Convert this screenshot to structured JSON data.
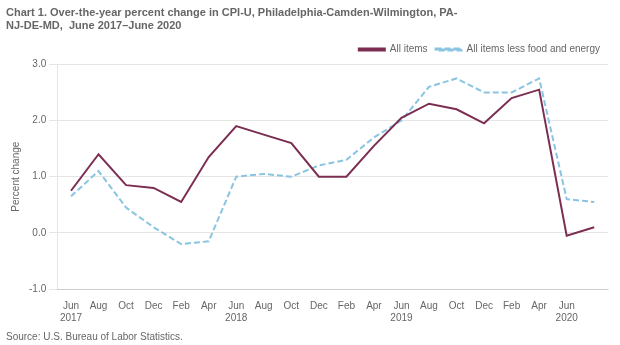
{
  "chart_data": {
    "type": "line",
    "title": [
      "Chart 1. Over-the-year percent change in CPI-U, Philadelphia-Camden-Wilmington, PA-",
      "NJ-DE-MD,  June 2017–June 2020"
    ],
    "y_label": "Percent change",
    "annotations": [
      "Source: U.S. Bureau of Labor Statistics."
    ],
    "categories": [
      "Jun 2017",
      "Aug",
      "Oct",
      "Dec",
      "Feb",
      "Apr",
      "Jun 2018",
      "Aug",
      "Oct",
      "Dec",
      "Feb",
      "Apr",
      "Jun 2019",
      "Aug",
      "Oct",
      "Dec",
      "Feb",
      "Apr",
      "Jun 2020",
      null
    ],
    "series": [
      {
        "name": "All items",
        "color": "#7B2D52",
        "line_style": "solid",
        "marker": "none",
        "values": [
          0.75,
          1.4,
          0.85,
          0.8,
          0.55,
          1.35,
          1.9,
          1.75,
          1.6,
          1.0,
          1.0,
          1.55,
          2.05,
          2.3,
          2.2,
          1.95,
          2.4,
          2.55,
          -0.05,
          0.1
        ]
      },
      {
        "name": "All items less food and energy",
        "color": "#89C4E1",
        "line_style": "dashed",
        "marker": "none",
        "values": [
          0.65,
          1.1,
          0.45,
          0.1,
          -0.2,
          -0.15,
          1.0,
          1.05,
          1.0,
          1.2,
          1.3,
          1.7,
          2.0,
          2.6,
          2.75,
          2.5,
          2.5,
          2.75,
          0.6,
          0.55
        ]
      }
    ],
    "ylim": [
      -1.0,
      3.0
    ],
    "yticks": [
      {
        "value": -1.0,
        "label": "-1.0"
      },
      {
        "value": 0.0,
        "label": "0.0"
      },
      {
        "value": 1.0,
        "label": "1.0"
      },
      {
        "value": 2.0,
        "label": "2.0"
      },
      {
        "value": 3.0,
        "label": "3.0"
      }
    ],
    "grid": true,
    "legend": "upper right"
  }
}
